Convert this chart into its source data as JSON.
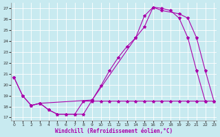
{
  "bg_color": "#c8eaf0",
  "grid_color": "#ffffff",
  "line_color": "#aa00aa",
  "xlabel": "Windchill (Refroidissement éolien,°C)",
  "xlim": [
    -0.3,
    23.3
  ],
  "ylim": [
    16.7,
    27.5
  ],
  "yticks": [
    17,
    18,
    19,
    20,
    21,
    22,
    23,
    24,
    25,
    26,
    27
  ],
  "xticks": [
    0,
    1,
    2,
    3,
    4,
    5,
    6,
    7,
    8,
    9,
    10,
    11,
    12,
    13,
    14,
    15,
    16,
    17,
    18,
    19,
    20,
    21,
    22,
    23
  ],
  "line1_x": [
    0,
    1,
    2,
    3,
    4,
    5,
    6,
    7,
    8,
    9,
    10,
    11,
    12,
    13,
    14,
    15,
    16,
    17,
    18,
    19,
    20,
    21,
    22
  ],
  "line1_y": [
    20.7,
    19.0,
    18.1,
    18.3,
    17.7,
    17.3,
    17.3,
    17.3,
    17.3,
    18.6,
    19.9,
    21.3,
    22.5,
    23.5,
    24.3,
    26.3,
    27.1,
    27.0,
    26.8,
    26.1,
    24.3,
    21.3,
    18.5
  ],
  "line2_x": [
    0,
    1,
    2,
    3,
    4,
    5,
    6,
    7,
    8,
    9,
    10,
    11,
    12,
    13,
    14,
    15,
    16,
    17,
    18,
    19,
    20,
    21,
    22,
    23
  ],
  "line2_y": [
    20.7,
    19.0,
    18.1,
    18.3,
    17.7,
    17.3,
    17.3,
    17.3,
    18.5,
    18.5,
    18.5,
    18.5,
    18.5,
    18.5,
    18.5,
    18.5,
    18.5,
    18.5,
    18.5,
    18.5,
    18.5,
    18.5,
    18.5,
    18.5
  ],
  "line3_x": [
    2,
    3,
    9,
    14,
    15,
    16,
    17,
    19,
    20,
    21,
    22,
    23
  ],
  "line3_y": [
    18.1,
    18.3,
    18.6,
    24.3,
    25.3,
    27.1,
    26.8,
    26.5,
    26.1,
    24.3,
    21.3,
    18.5
  ]
}
